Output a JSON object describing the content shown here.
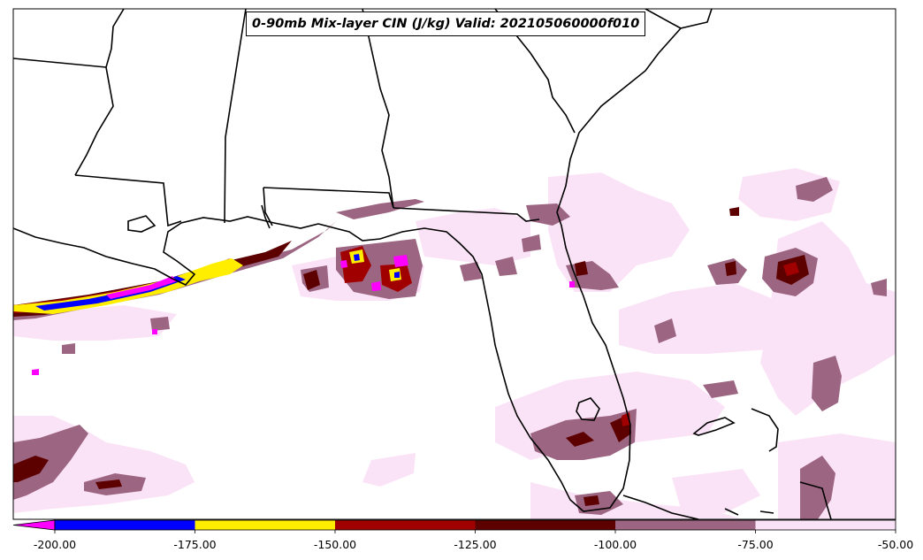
{
  "title": "0-90mb Mix-layer CIN (J/kg) Valid: 202105060000f010",
  "colorbar": {
    "ticks": [
      "-200.00",
      "-175.00",
      "-150.00",
      "-125.00",
      "-100.00",
      "-75.00",
      "-50.00"
    ],
    "bins": [
      {
        "from": -200,
        "to": -175,
        "color": "#0000ff"
      },
      {
        "from": -175,
        "to": -150,
        "color": "#ffee00"
      },
      {
        "from": -150,
        "to": -125,
        "color": "#a00000"
      },
      {
        "from": -125,
        "to": -100,
        "color": "#5c0000"
      },
      {
        "from": -100,
        "to": -75,
        "color": "#9c6582"
      },
      {
        "from": -75,
        "to": -50,
        "color": "#fbe3f7"
      }
    ],
    "under_color": "#ff00ff"
  },
  "colors": {
    "under": "#ff00ff",
    "blue": "#0000ff",
    "yellow": "#ffee00",
    "red": "#a00000",
    "darkred": "#5c0000",
    "mauve": "#9c6582",
    "pink": "#fbe3f7",
    "land": "#ffffff",
    "borders": "#000000"
  }
}
